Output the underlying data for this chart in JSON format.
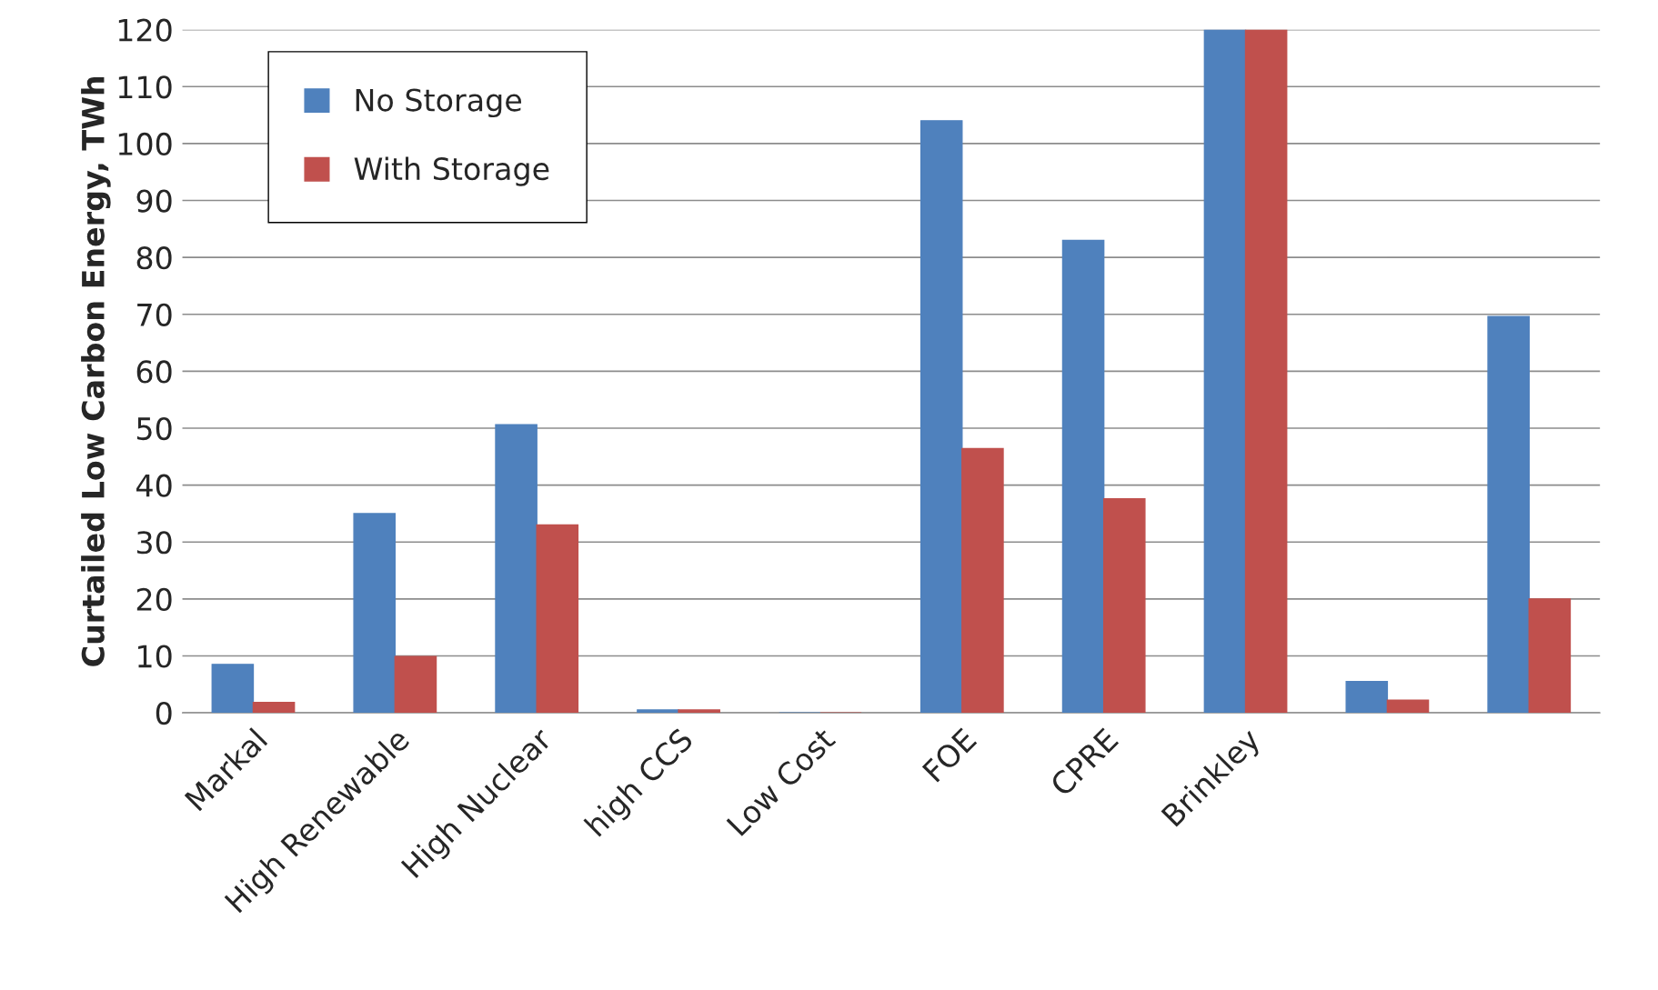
{
  "chart_data": {
    "type": "bar",
    "ylabel": "Curtailed Low Carbon Energy, TWh",
    "categories": [
      "Markal",
      "High Renewable",
      "High Nuclear",
      "high CCS",
      "Low Cost",
      "FOE",
      "CPRE",
      "Brinkley",
      null,
      null
    ],
    "series": [
      {
        "name": "No Storage",
        "color": "#4f81bd",
        "values": [
          8.5,
          35,
          50.6,
          0.5,
          0,
          104,
          83,
          120,
          5.5,
          69.6
        ]
      },
      {
        "name": "With Storage",
        "color": "#c0504d",
        "values": [
          1.8,
          9.9,
          33,
          0.5,
          0,
          46.4,
          37.6,
          120,
          2.2,
          20
        ]
      }
    ],
    "ylim": [
      0,
      120
    ],
    "yticks": [
      0,
      10,
      20,
      30,
      40,
      50,
      60,
      70,
      80,
      90,
      100,
      110,
      120
    ],
    "grid": "y",
    "legend": "top left"
  }
}
